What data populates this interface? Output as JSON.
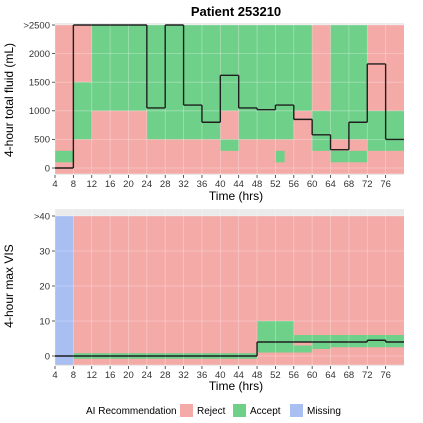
{
  "title": "Patient 253210",
  "colors": {
    "Reject": "#f4aaa6",
    "Accept": "#6fd08a",
    "Missing": "#a9bff2",
    "panel_bg": "#ebebeb",
    "line": "#1f1f1f",
    "line_mismatch": "#c0392b"
  },
  "legend": {
    "title": "AI Recommendation",
    "items": [
      "Reject",
      "Accept",
      "Missing"
    ]
  },
  "chart_data": [
    {
      "type": "heatmap",
      "name": "fluid",
      "xlabel": "Time (hrs)",
      "ylabel": "4-hour total fluid (mL)",
      "xlim": [
        4,
        80
      ],
      "ylim": [
        0,
        2500
      ],
      "x_ticks": [
        4,
        8,
        12,
        16,
        20,
        24,
        28,
        32,
        36,
        40,
        44,
        48,
        52,
        56,
        60,
        64,
        68,
        72,
        76
      ],
      "y_ticks": [
        0,
        500,
        1000,
        1500,
        2000,
        2500
      ],
      "y_tick_labels": [
        "0",
        "500",
        "1000",
        "1500",
        "2000",
        ">2500"
      ],
      "grid": true,
      "background": "Reject",
      "accept_regions": [
        {
          "x": [
            4,
            8
          ],
          "y": [
            100,
            300
          ]
        },
        {
          "x": [
            8,
            12
          ],
          "y": [
            500,
            1500
          ]
        },
        {
          "x": [
            12,
            24
          ],
          "y": [
            1000,
            2500
          ]
        },
        {
          "x": [
            24,
            28
          ],
          "y": [
            500,
            2500
          ]
        },
        {
          "x": [
            28,
            40
          ],
          "y": [
            500,
            2500
          ]
        },
        {
          "x": [
            40,
            44
          ],
          "y": [
            300,
            500
          ]
        },
        {
          "x": [
            40,
            44
          ],
          "y": [
            1000,
            2500
          ]
        },
        {
          "x": [
            44,
            52
          ],
          "y": [
            500,
            2500
          ]
        },
        {
          "x": [
            52,
            54
          ],
          "y": [
            100,
            300
          ]
        },
        {
          "x": [
            52,
            56
          ],
          "y": [
            500,
            2500
          ]
        },
        {
          "x": [
            56,
            60
          ],
          "y": [
            1000,
            2500
          ]
        },
        {
          "x": [
            60,
            64
          ],
          "y": [
            300,
            1000
          ]
        },
        {
          "x": [
            64,
            72
          ],
          "y": [
            100,
            300
          ]
        },
        {
          "x": [
            64,
            72
          ],
          "y": [
            500,
            2500
          ]
        },
        {
          "x": [
            72,
            80
          ],
          "y": [
            300,
            1000
          ]
        }
      ],
      "actual_step": {
        "x": [
          4,
          8,
          12,
          16,
          20,
          24,
          28,
          32,
          36,
          40,
          44,
          48,
          52,
          56,
          60,
          64,
          68,
          72,
          76
        ],
        "y": [
          0,
          2500,
          2500,
          2500,
          2500,
          1050,
          2500,
          1100,
          800,
          1620,
          1050,
          1020,
          1100,
          850,
          580,
          320,
          800,
          1820,
          500
        ]
      }
    },
    {
      "type": "heatmap",
      "name": "vis",
      "xlabel": "Time (hrs)",
      "ylabel": "4-hour max VIS",
      "xlim": [
        4,
        80
      ],
      "ylim": [
        0,
        40
      ],
      "x_ticks": [
        4,
        8,
        12,
        16,
        20,
        24,
        28,
        32,
        36,
        40,
        44,
        48,
        52,
        56,
        60,
        64,
        68,
        72,
        76
      ],
      "y_ticks": [
        0,
        10,
        20,
        30,
        40
      ],
      "y_tick_labels": [
        "0",
        "10",
        "20",
        "30",
        ">40"
      ],
      "grid": true,
      "background": "Reject",
      "missing_regions": [
        {
          "x": [
            4,
            8
          ],
          "y": [
            -2.5,
            40
          ]
        }
      ],
      "accept_regions": [
        {
          "x": [
            8,
            48
          ],
          "y": [
            -0.8,
            0.8
          ]
        },
        {
          "x": [
            48,
            52
          ],
          "y": [
            4,
            10
          ]
        },
        {
          "x": [
            48,
            52
          ],
          "y": [
            1,
            4
          ]
        },
        {
          "x": [
            52,
            56
          ],
          "y": [
            4,
            10
          ]
        },
        {
          "x": [
            52,
            56
          ],
          "y": [
            1,
            4
          ]
        },
        {
          "x": [
            56,
            60
          ],
          "y": [
            1,
            3
          ]
        },
        {
          "x": [
            56,
            80
          ],
          "y": [
            4,
            6
          ]
        },
        {
          "x": [
            60,
            64
          ],
          "y": [
            2,
            4
          ]
        },
        {
          "x": [
            64,
            72
          ],
          "y": [
            2.5,
            4
          ]
        },
        {
          "x": [
            72,
            80
          ],
          "y": [
            2.5,
            4
          ]
        }
      ],
      "actual_step": {
        "x": [
          4,
          8,
          12,
          16,
          20,
          24,
          28,
          32,
          36,
          40,
          44,
          48,
          52,
          56,
          60,
          64,
          68,
          72,
          76
        ],
        "y": [
          0,
          0,
          0,
          0,
          0,
          0,
          0,
          0,
          0,
          0,
          0,
          4,
          4,
          4,
          4,
          4,
          4,
          4.5,
          4
        ]
      }
    }
  ]
}
